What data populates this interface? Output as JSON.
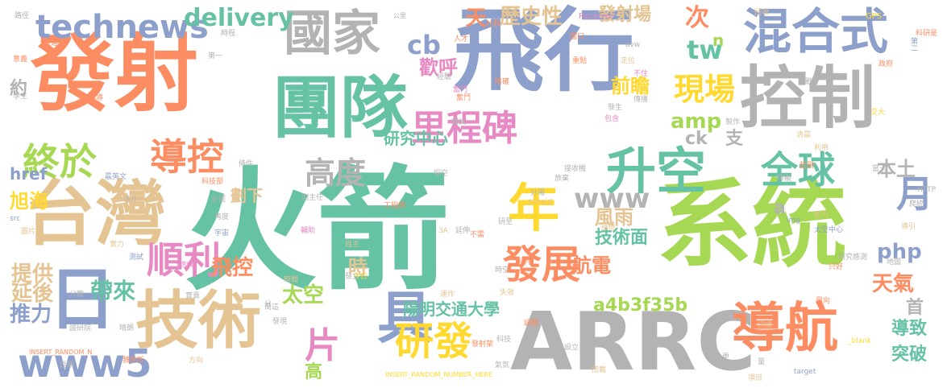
{
  "palette": {
    "green": "#66c2a5",
    "orange": "#fc8d62",
    "blue": "#8da0cb",
    "pink": "#e78ac3",
    "lime": "#a6d854",
    "yellow": "#ffd92f",
    "tan": "#e5c494",
    "gray": "#b3b3b3"
  },
  "words": [
    {
      "t": "火箭",
      "c": "green"
    },
    {
      "t": "飛行",
      "c": "blue"
    },
    {
      "t": "發射",
      "c": "orange"
    },
    {
      "t": "系統",
      "c": "lime"
    },
    {
      "t": "ARRC",
      "c": "gray"
    },
    {
      "t": "控制",
      "c": "gray"
    },
    {
      "t": "團隊",
      "c": "green"
    },
    {
      "t": "台灣",
      "c": "tan"
    },
    {
      "t": "技術",
      "c": "tan"
    },
    {
      "t": "混合式",
      "c": "blue"
    },
    {
      "t": "國家",
      "c": "gray"
    },
    {
      "t": "導航",
      "c": "orange"
    },
    {
      "t": "升空",
      "c": "green"
    },
    {
      "t": "具",
      "c": "blue"
    },
    {
      "t": "年",
      "c": "yellow"
    },
    {
      "t": "日",
      "c": "blue"
    },
    {
      "t": "www5",
      "c": "blue"
    },
    {
      "t": "研發",
      "c": "yellow"
    },
    {
      "t": "里程碑",
      "c": "pink"
    },
    {
      "t": "發展",
      "c": "orange"
    },
    {
      "t": "順利",
      "c": "pink"
    },
    {
      "t": "終於",
      "c": "lime"
    },
    {
      "t": "導控",
      "c": "orange"
    },
    {
      "t": "technews",
      "c": "blue"
    },
    {
      "t": "全球",
      "c": "green"
    },
    {
      "t": "高度",
      "c": "gray"
    },
    {
      "t": "月",
      "c": "blue"
    },
    {
      "t": "現場",
      "c": "yellow"
    },
    {
      "t": "片",
      "c": "pink"
    },
    {
      "t": "delivery",
      "c": "green"
    },
    {
      "t": "www",
      "c": "gray"
    },
    {
      "t": "tw",
      "c": "green"
    },
    {
      "t": "cb",
      "c": "blue"
    },
    {
      "t": "天",
      "c": "orange"
    },
    {
      "t": "歷史性",
      "c": "tan"
    },
    {
      "t": "發射場",
      "c": "tan"
    },
    {
      "t": "次",
      "c": "orange"
    },
    {
      "t": "n",
      "c": "lime"
    },
    {
      "t": "歡呼",
      "c": "pink"
    },
    {
      "t": "前瞻",
      "c": "yellow"
    },
    {
      "t": "amp",
      "c": "lime"
    },
    {
      "t": "ck",
      "c": "gray"
    },
    {
      "t": "支",
      "c": "gray"
    },
    {
      "t": "php",
      "c": "blue"
    },
    {
      "t": "本土",
      "c": "gray"
    },
    {
      "t": "風雨",
      "c": "tan"
    },
    {
      "t": "技術面",
      "c": "green"
    },
    {
      "t": "a",
      "c": "gray"
    },
    {
      "t": "航電",
      "c": "orange"
    },
    {
      "t": "天氣",
      "c": "orange"
    },
    {
      "t": "a4b3f35b",
      "c": "lime"
    },
    {
      "t": "首",
      "c": "gray"
    },
    {
      "t": "導致",
      "c": "green"
    },
    {
      "t": "突破",
      "c": "green"
    },
    {
      "t": "陽明交通大學",
      "c": "green"
    },
    {
      "t": "研究中心",
      "c": "green"
    },
    {
      "t": "劃下",
      "c": "tan"
    },
    {
      "t": "時",
      "c": "tan"
    },
    {
      "t": "太空",
      "c": "lime"
    },
    {
      "t": "飛控",
      "c": "orange"
    },
    {
      "t": "帶來",
      "c": "green"
    },
    {
      "t": "提供",
      "c": "tan"
    },
    {
      "t": "延後",
      "c": "tan"
    },
    {
      "t": "推力",
      "c": "blue"
    },
    {
      "t": "約",
      "c": "gray"
    },
    {
      "t": "href",
      "c": "blue"
    },
    {
      "t": "旭海",
      "c": "yellow"
    },
    {
      "t": "高",
      "c": "lime"
    },
    {
      "t": "INSERT_RANDOM_NUMBER_HERE",
      "c": "yellow"
    },
    {
      "t": "INSERT_RANDOM_N",
      "c": "orange"
    },
    {
      "t": "_blank",
      "c": "yellow"
    },
    {
      "t": "target",
      "c": "blue"
    },
    {
      "t": "HTTP",
      "c": "gray"
    },
    {
      "t": "GPS",
      "c": "yellow"
    },
    {
      "t": "Receiver",
      "c": "pink"
    },
    {
      "t": "avw",
      "c": "gray"
    },
    {
      "t": "zoneid",
      "c": "tan"
    },
    {
      "t": "src",
      "c": "blue"
    },
    {
      "t": "img",
      "c": "blue"
    },
    {
      "t": "路徑",
      "c": "gray"
    },
    {
      "t": "推進",
      "c": "orange"
    },
    {
      "t": "意義",
      "c": "orange"
    },
    {
      "t": "時程",
      "c": "gray"
    },
    {
      "t": "第一",
      "c": "gray"
    },
    {
      "t": "經驗",
      "c": "gray"
    },
    {
      "t": "人才",
      "c": "orange"
    },
    {
      "t": "公里",
      "c": "gray"
    },
    {
      "t": "社群",
      "c": "orange"
    },
    {
      "t": "國口",
      "c": "orange"
    },
    {
      "t": "重點",
      "c": "orange"
    },
    {
      "t": "定位",
      "c": "tan"
    },
    {
      "t": "不住",
      "c": "pink"
    },
    {
      "t": "第二",
      "c": "blue"
    },
    {
      "t": "政府",
      "c": "orange"
    },
    {
      "t": "科研是",
      "c": "orange"
    },
    {
      "t": "制導",
      "c": "orange"
    },
    {
      "t": "學生",
      "c": "gray"
    },
    {
      "t": "奮鬥",
      "c": "orange"
    },
    {
      "t": "奮門",
      "c": "pink"
    },
    {
      "t": "審試",
      "c": "gray"
    },
    {
      "t": "支持",
      "c": "pink"
    },
    {
      "t": "傳播",
      "c": "gray"
    },
    {
      "t": "發生",
      "c": "gray"
    },
    {
      "t": "包含",
      "c": "pink"
    },
    {
      "t": "製作",
      "c": "gray"
    },
    {
      "t": "交大",
      "c": "yellow"
    },
    {
      "t": "清晨",
      "c": "tan"
    },
    {
      "t": "利用",
      "c": "tan"
    },
    {
      "t": "起飛",
      "c": "orange"
    },
    {
      "t": "工程師",
      "c": "orange"
    },
    {
      "t": "科技部",
      "c": "orange"
    },
    {
      "t": "支援",
      "c": "gray"
    },
    {
      "t": "條件",
      "c": "gray"
    },
    {
      "t": "副主任",
      "c": "gray"
    },
    {
      "t": "再度",
      "c": "gray"
    },
    {
      "t": "宇宙",
      "c": "blue"
    },
    {
      "t": "圖片",
      "c": "tan"
    },
    {
      "t": "實力",
      "c": "tan"
    },
    {
      "t": "測試",
      "c": "blue"
    },
    {
      "t": "燃料",
      "c": "pink"
    },
    {
      "t": "輔助",
      "c": "pink"
    },
    {
      "t": "自主",
      "c": "tan"
    },
    {
      "t": "3A",
      "c": "tan"
    },
    {
      "t": "延伸",
      "c": "gray"
    },
    {
      "t": "不需",
      "c": "orange"
    },
    {
      "t": "研至",
      "c": "gray"
    },
    {
      "t": "維修",
      "c": "tan"
    },
    {
      "t": "能力",
      "c": "tan"
    },
    {
      "t": "太空中心",
      "c": "blue"
    },
    {
      "t": "研究感測",
      "c": "gray"
    },
    {
      "t": "地圖",
      "c": "gray"
    },
    {
      "t": "只好",
      "c": "orange"
    },
    {
      "t": "飛向",
      "c": "orange"
    },
    {
      "t": "導引",
      "c": "tan"
    },
    {
      "t": "爬統",
      "c": "gray"
    },
    {
      "t": "寶貴",
      "c": "gray"
    },
    {
      "t": "時間",
      "c": "tan"
    },
    {
      "t": "分",
      "c": "gray"
    },
    {
      "t": "發文",
      "c": "gray"
    },
    {
      "t": "今日",
      "c": "yellow"
    },
    {
      "t": "運作",
      "c": "tan"
    },
    {
      "t": "失效",
      "c": "tan"
    },
    {
      "t": "元件",
      "c": "orange"
    },
    {
      "t": "晴朗",
      "c": "gray"
    },
    {
      "t": "分離",
      "c": "gray"
    },
    {
      "t": "國研院",
      "c": "gray"
    },
    {
      "t": "方向",
      "c": "tan"
    },
    {
      "t": "魏世昕",
      "c": "orange"
    },
    {
      "t": "延期",
      "c": "gray"
    },
    {
      "t": "簡這",
      "c": "gray"
    },
    {
      "t": "發現",
      "c": "gray"
    },
    {
      "t": "氣氛",
      "c": "gray"
    },
    {
      "t": "科技",
      "c": "gray"
    },
    {
      "t": "設立",
      "c": "gray"
    },
    {
      "t": "決議",
      "c": "tan"
    },
    {
      "t": "項目",
      "c": "tan"
    },
    {
      "t": "量",
      "c": "gray"
    },
    {
      "t": "更",
      "c": "gray"
    },
    {
      "t": "太",
      "c": "gray"
    },
    {
      "t": "發射架",
      "c": "orange"
    },
    {
      "t": "調整",
      "c": "orange"
    },
    {
      "t": "搭載",
      "c": "tan"
    },
    {
      "t": "接收機",
      "c": "gray"
    },
    {
      "t": "放棄",
      "c": "gray"
    },
    {
      "t": "分場",
      "c": "gray"
    },
    {
      "t": "時空",
      "c": "gray"
    },
    {
      "t": "大小",
      "c": "gray"
    },
    {
      "t": "晨英文",
      "c": "blue"
    },
    {
      "t": "挑戰",
      "c": "gray"
    },
    {
      "t": "當天",
      "c": "gray"
    },
    {
      "t": "回收",
      "c": "tan"
    },
    {
      "t": "精確",
      "c": "orange"
    },
    {
      "t": "探空",
      "c": "gray"
    },
    {
      "t": "障礙",
      "c": "gray"
    }
  ]
}
